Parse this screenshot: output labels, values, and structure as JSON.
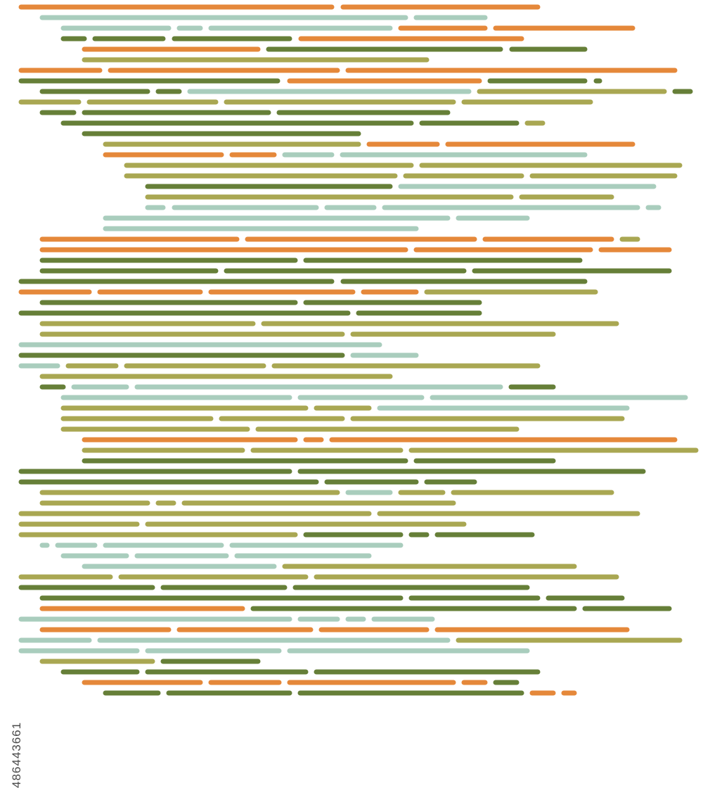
{
  "palette": {
    "orange": "#e5883a",
    "sage": "#a9cdbd",
    "olive": "#667f38",
    "khaki": "#a9a752"
  },
  "background": "#ffffff",
  "watermark": {
    "text": "486443661"
  },
  "artwork": {
    "kind": "abstract horizontal rounded dashes"
  }
}
